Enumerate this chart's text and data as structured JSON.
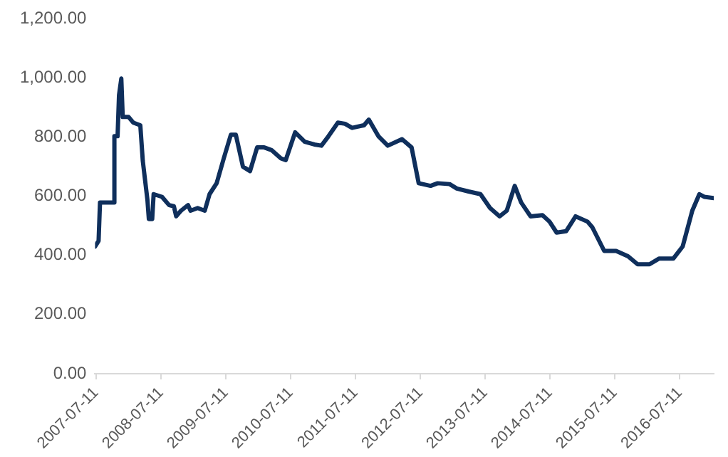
{
  "chart_data": {
    "type": "line",
    "x": [
      "2007-07-05",
      "2007-07-25",
      "2007-08-02",
      "2007-10-21",
      "2007-10-22",
      "2007-11-09",
      "2007-11-17",
      "2007-11-30",
      "2007-12-08",
      "2008-01-10",
      "2008-02-05",
      "2008-03-16",
      "2008-03-30",
      "2008-04-25",
      "2008-05-03",
      "2008-05-22",
      "2008-05-30",
      "2008-07-16",
      "2008-08-12",
      "2008-08-25",
      "2008-09-21",
      "2008-10-04",
      "2008-10-31",
      "2008-12-10",
      "2008-12-24",
      "2009-02-02",
      "2009-03-14",
      "2009-04-10",
      "2009-05-20",
      "2009-06-29",
      "2009-08-08",
      "2009-09-05",
      "2009-10-15",
      "2009-11-24",
      "2010-01-03",
      "2010-02-12",
      "2010-03-25",
      "2010-05-17",
      "2010-06-13",
      "2010-08-05",
      "2010-09-28",
      "2010-11-21",
      "2010-12-31",
      "2011-02-09",
      "2011-04-03",
      "2011-05-13",
      "2011-06-22",
      "2011-08-28",
      "2011-09-24",
      "2011-11-17",
      "2012-01-09",
      "2012-03-29",
      "2012-05-22",
      "2012-07-01",
      "2012-09-06",
      "2012-10-16",
      "2012-12-22",
      "2013-02-01",
      "2013-04-08",
      "2013-06-14",
      "2013-08-07",
      "2013-09-30",
      "2013-11-09",
      "2013-12-24",
      "2014-01-29",
      "2014-03-23",
      "2014-05-29",
      "2014-07-08",
      "2014-08-17",
      "2014-10-10",
      "2014-12-02",
      "2015-02-07",
      "2015-03-06",
      "2015-05-12",
      "2015-07-18",
      "2015-09-23",
      "2015-11-16",
      "2016-01-22",
      "2016-03-15",
      "2016-06-04",
      "2016-07-27",
      "2016-09-19",
      "2016-10-29",
      "2016-11-25",
      "2017-01-18"
    ],
    "series": [
      {
        "color": "#0f2f5c",
        "values": [
          430,
          449,
          579,
          579,
          803,
          803,
          942,
          998,
          868,
          868,
          849,
          840,
          719,
          588,
          523,
          523,
          607,
          598,
          579,
          570,
          566,
          532,
          551,
          570,
          551,
          560,
          551,
          607,
          644,
          728,
          808,
          808,
          700,
          685,
          765,
          765,
          756,
          728,
          722,
          816,
          784,
          775,
          771,
          803,
          849,
          845,
          831,
          840,
          859,
          803,
          771,
          793,
          765,
          644,
          635,
          644,
          641,
          626,
          616,
          607,
          560,
          532,
          551,
          635,
          579,
          532,
          536,
          514,
          477,
          482,
          532,
          514,
          495,
          415,
          415,
          397,
          370,
          370,
          389,
          389,
          430,
          551,
          607,
          598,
          594
        ]
      }
    ],
    "xlim": [
      "2007-07-05",
      "2017-01-18"
    ],
    "xticks": [
      "2007-07-11",
      "2008-07-11",
      "2009-07-11",
      "2010-07-11",
      "2011-07-11",
      "2012-07-11",
      "2013-07-11",
      "2014-07-11",
      "2015-07-11",
      "2016-07-11"
    ],
    "ylim": [
      0,
      1200
    ],
    "yticks": [
      {
        "value": 0,
        "label": "0.00"
      },
      {
        "value": 200,
        "label": "200.00"
      },
      {
        "value": 400,
        "label": "400.00"
      },
      {
        "value": 600,
        "label": "600.00"
      },
      {
        "value": 800,
        "label": "800.00"
      },
      {
        "value": 1000,
        "label": "1,000.00"
      },
      {
        "value": 1200,
        "label": "1,200.00"
      }
    ],
    "grid": false,
    "legend": false,
    "marker": "none",
    "line_style": "solid"
  }
}
